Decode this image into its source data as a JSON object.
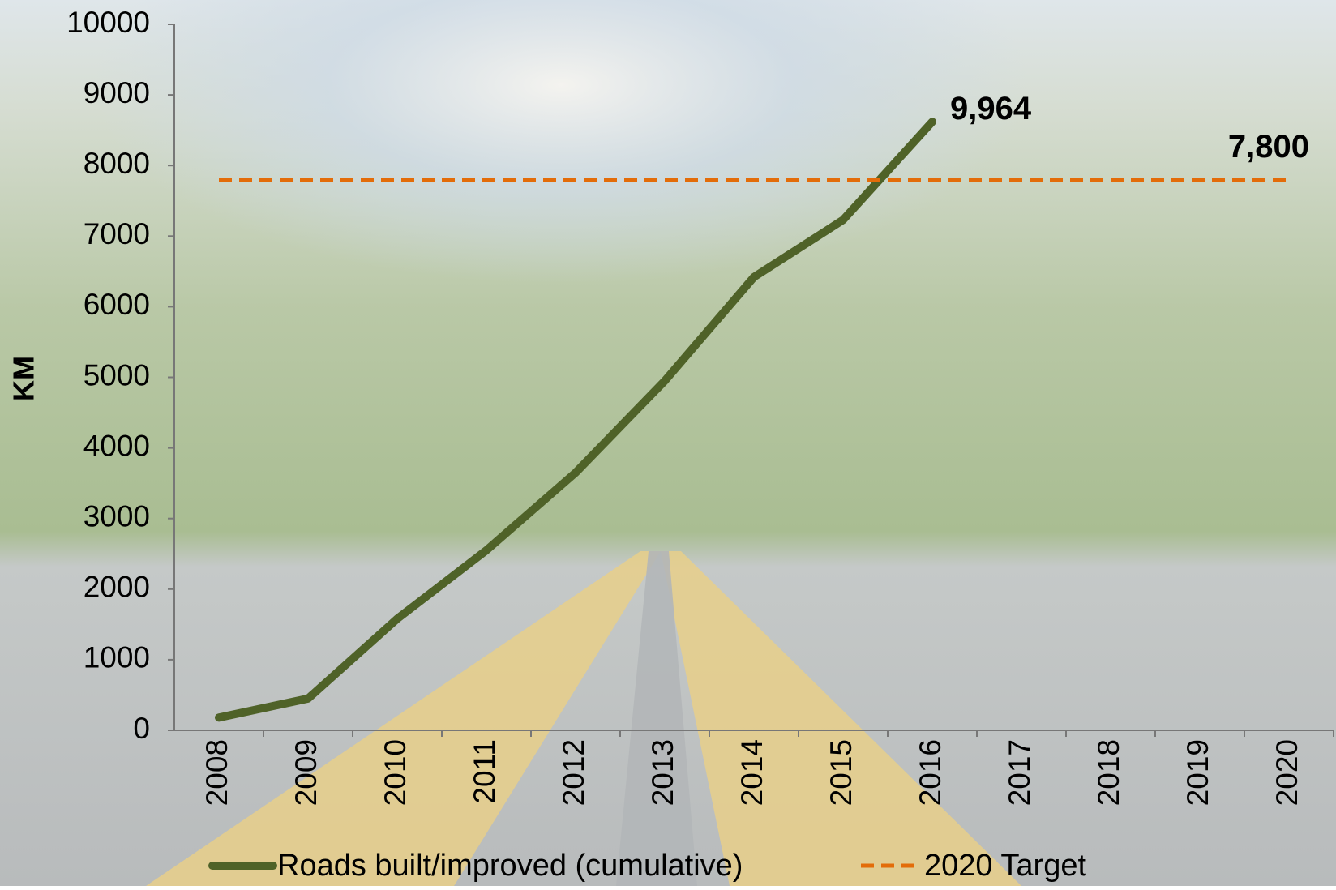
{
  "chart_data": {
    "type": "line",
    "y_label": "KM",
    "categories": [
      "2008",
      "2009",
      "2010",
      "2011",
      "2012",
      "2013",
      "2014",
      "2015",
      "2016",
      "2017",
      "2018",
      "2019",
      "2020"
    ],
    "series": [
      {
        "name": "Roads built/improved (cumulative)",
        "color": "#4f6228",
        "dash": false,
        "values": [
          180,
          450,
          1580,
          2550,
          3650,
          4950,
          6420,
          7230,
          8620,
          null,
          null,
          null,
          null
        ]
      },
      {
        "name": "2020 Target",
        "color": "#e36c09",
        "dash": true,
        "values": [
          7800,
          7800,
          7800,
          7800,
          7800,
          7800,
          7800,
          7800,
          7800,
          7800,
          7800,
          7800,
          7800
        ],
        "value_labels": [
          null,
          null,
          null,
          null,
          null,
          null,
          null,
          null,
          null,
          null,
          null,
          null,
          "7,800"
        ]
      }
    ],
    "annotations": [
      {
        "text": "9,964"
      }
    ],
    "ylim": [
      0,
      10000
    ],
    "yticks": [
      0,
      1000,
      2000,
      3000,
      4000,
      5000,
      6000,
      7000,
      8000,
      9000,
      10000
    ],
    "grid": false,
    "legend": "bottom"
  }
}
